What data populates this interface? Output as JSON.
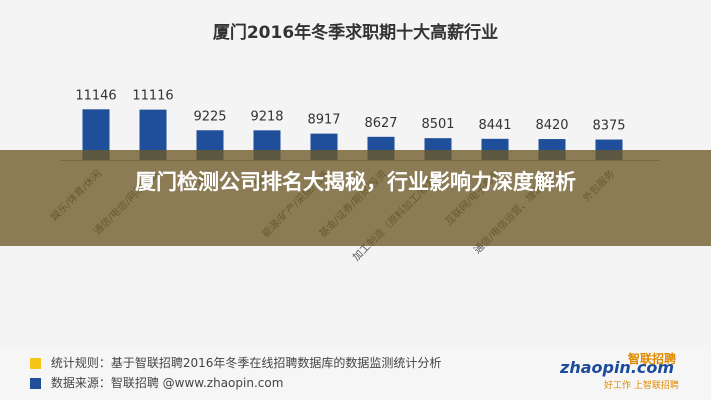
{
  "chart_data": {
    "type": "bar",
    "title": "厦门2016年冬季求职期十大高薪行业",
    "categories": [
      "娱乐/体育/休闲",
      "通信/电信/网络设备",
      "保险",
      "银行",
      "能源/矿产/采掘/冶炼",
      "基金/证券/期货/投资",
      "加工制造（原料加工/模具）",
      "互联网/电子商务",
      "通信/电信运营、增值服务",
      "外包服务"
    ],
    "values": [
      11146,
      11116,
      9225,
      9218,
      8917,
      8627,
      8501,
      8441,
      8420,
      8375
    ],
    "value_labels": [
      "11146",
      "11116",
      "9225",
      "9218",
      "8917",
      "8627",
      "8501",
      "8441",
      "8420",
      "8375"
    ],
    "ylim": [
      0,
      12000
    ],
    "bar_color": "#1f4e9a",
    "grid": false,
    "legend": "none"
  },
  "overlay": {
    "headline": "厦门检测公司排名大揭秘，行业影响力深度解析",
    "color": "#6e5a28"
  },
  "footer": {
    "note1": "统计规则：基于智联招聘2016年冬季在线招聘数据库的数据监测统计分析",
    "note1_color": "#f5c518",
    "note2": "数据来源：智联招聘 @www.zhaopin.com",
    "note2_color": "#1f4e9a",
    "logo_main": "zhaopin.com",
    "logo_cn": "智联招聘",
    "logo_sub": "好工作 上智联招聘"
  }
}
